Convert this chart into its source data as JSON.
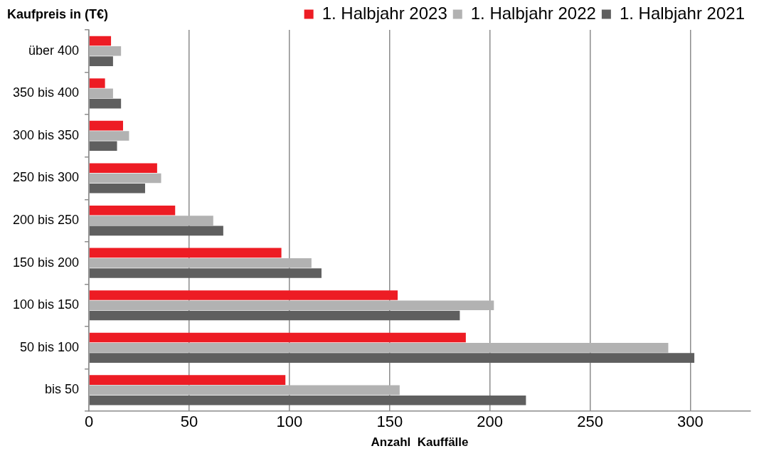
{
  "chart_data": {
    "type": "bar",
    "orientation": "horizontal",
    "ylabel": "Kaufpreis in (T€)",
    "xlabel": "Anzahl  Kauffälle",
    "categories": [
      "über 400",
      "350 bis 400",
      "300 bis 350",
      "250 bis 300",
      "200 bis 250",
      "150 bis 200",
      "100 bis 150",
      "50 bis 100",
      "bis 50"
    ],
    "series": [
      {
        "name": "1. Halbjahr 2023",
        "color": "#ed1c24",
        "values": [
          11,
          8,
          17,
          34,
          43,
          96,
          154,
          188,
          98
        ]
      },
      {
        "name": "1. Halbjahr 2022",
        "color": "#b2b2b2",
        "values": [
          16,
          12,
          20,
          36,
          62,
          111,
          202,
          289,
          155
        ]
      },
      {
        "name": "1. Halbjahr 2021",
        "color": "#5f5f5f",
        "values": [
          12,
          16,
          14,
          28,
          67,
          116,
          185,
          302,
          218
        ]
      }
    ],
    "xlim": [
      0,
      330
    ],
    "xticks": [
      0,
      50,
      100,
      150,
      200,
      250,
      300
    ],
    "grid": "x",
    "legend": "top right"
  }
}
